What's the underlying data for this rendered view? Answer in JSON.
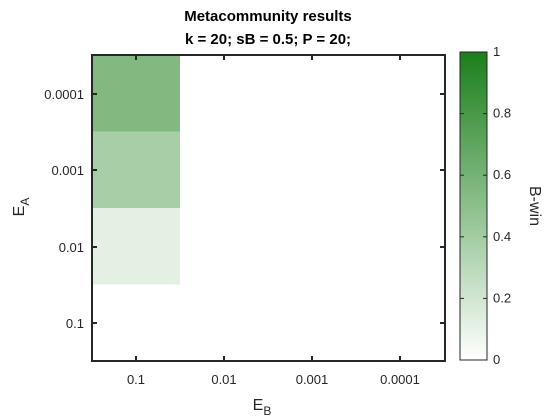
{
  "chart_data": {
    "type": "heatmap",
    "title": "Metacommunity results",
    "subtitle": "k = 20;  sB = 0.5;  P = 20;",
    "xlabel": "E",
    "xlabel_sub": "B",
    "ylabel": "E",
    "ylabel_sub": "A",
    "x_categories": [
      "0.1",
      "0.01",
      "0.001",
      "0.0001"
    ],
    "y_categories": [
      "0.0001",
      "0.001",
      "0.01",
      "0.1"
    ],
    "values": [
      [
        0.55,
        0.0,
        0.0,
        0.0
      ],
      [
        0.38,
        0.0,
        0.0,
        0.0
      ],
      [
        0.12,
        0.0,
        0.0,
        0.0
      ],
      [
        0.0,
        0.0,
        0.0,
        0.0
      ]
    ],
    "colorbar": {
      "label": "B-win",
      "min": 0,
      "max": 1,
      "ticks": [
        "0",
        "0.2",
        "0.4",
        "0.6",
        "0.8",
        "1"
      ],
      "color_low": "#ffffff",
      "color_high": "#1a7f1a"
    }
  }
}
